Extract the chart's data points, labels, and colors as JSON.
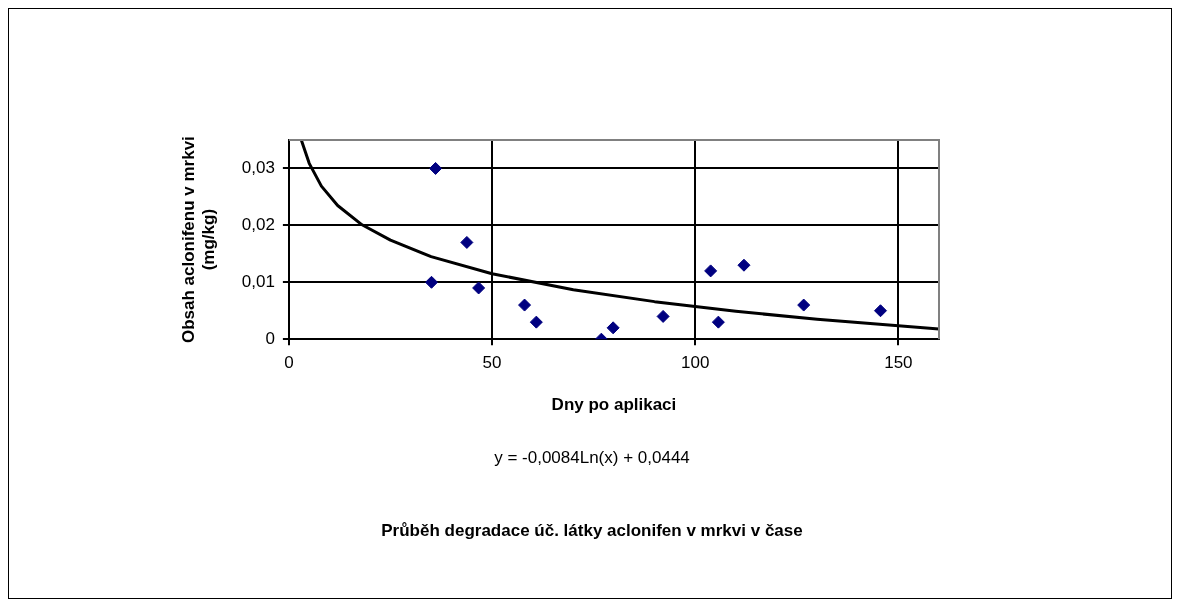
{
  "chart_data": {
    "type": "scatter",
    "title": "Průběh degradace úč. látky aclonifen v mrkvi v čase",
    "xlabel": "Dny po aplikaci",
    "ylabel": "Obsah aclonifenu v mrkvi\n(mg/kg)",
    "annotations": [
      "y = -0,0084Ln(x) + 0,0444"
    ],
    "series": [
      {
        "color": "#000080",
        "marker": "diamond",
        "x": [
          36.1,
          35.1,
          43.8,
          46.7,
          58,
          60.9,
          76.9,
          79.8,
          92.1,
          103.8,
          105.7,
          112,
          126.7,
          145.6
        ],
        "values": [
          0.03,
          0.01,
          0.017,
          0.009,
          0.006,
          0.003,
          0,
          0.002,
          0.004,
          0.012,
          0.003,
          0.013,
          0.006,
          0.005
        ]
      },
      {
        "type": "line",
        "color": "#000000",
        "marker": "none",
        "line_style": "solid",
        "x": [
          3.1,
          5,
          8,
          12,
          18,
          25,
          35,
          50,
          70,
          90,
          110,
          130,
          160
        ],
        "values": [
          0.0349,
          0.0309,
          0.0269,
          0.0235,
          0.0201,
          0.0174,
          0.0145,
          0.0115,
          0.0087,
          0.0066,
          0.0049,
          0.0035,
          0.0018
        ]
      }
    ],
    "xlim": [
      0,
      160
    ],
    "xticks": [
      0,
      50,
      100,
      150
    ],
    "ylim": [
      0,
      0.035
    ],
    "yticks": [
      {
        "value": 0,
        "label": "0"
      },
      {
        "value": 0.01,
        "label": "0,01"
      },
      {
        "value": 0.02,
        "label": "0,02"
      },
      {
        "value": 0.03,
        "label": "0,03"
      }
    ],
    "grid": true,
    "legend": false
  }
}
